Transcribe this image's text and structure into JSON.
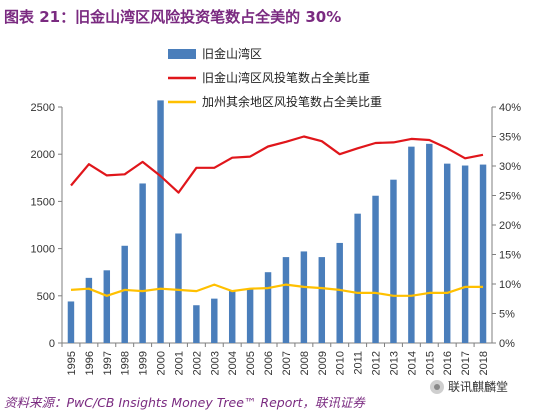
{
  "title": "图表 21：旧金山湾区风险投资笔数占全美的 30%",
  "source": "资料来源：PwC/CB Insights Money Tree™ Report，联讯证券",
  "watermark": "联讯麒麟堂",
  "colors": {
    "bar": "#4a7ebb",
    "sf_line": "#e0161b",
    "ca_line": "#ffc000",
    "title": "#7a2a80"
  },
  "chart_data": {
    "type": "bar",
    "title": "",
    "categories": [
      "1995",
      "1996",
      "1997",
      "1998",
      "1999",
      "2000",
      "2001",
      "2002",
      "2003",
      "2004",
      "2005",
      "2006",
      "2007",
      "2008",
      "2009",
      "2010",
      "2011",
      "2012",
      "2013",
      "2014",
      "2015",
      "2016",
      "2017",
      "2018"
    ],
    "series": [
      {
        "name": "旧金山湾区",
        "type": "bar",
        "axis": "left",
        "values": [
          440,
          690,
          770,
          1030,
          1690,
          2570,
          1160,
          400,
          470,
          560,
          570,
          750,
          910,
          970,
          910,
          1060,
          1370,
          1560,
          1730,
          2080,
          2110,
          1900,
          1880,
          1890
        ]
      },
      {
        "name": "旧金山湾区风投笔数占全美比重",
        "type": "line",
        "axis": "right",
        "values": [
          26.7,
          30.3,
          28.4,
          28.6,
          30.7,
          28.3,
          25.5,
          29.7,
          29.7,
          31.4,
          31.6,
          33.3,
          34.1,
          35.0,
          34.2,
          32.0,
          33.0,
          33.9,
          34.0,
          34.6,
          34.4,
          33.0,
          31.3,
          31.9
        ]
      },
      {
        "name": "加州其余地区风投笔数占全美比重",
        "type": "line",
        "axis": "right",
        "values": [
          9.0,
          9.2,
          8.0,
          9.0,
          8.8,
          9.2,
          9.0,
          8.8,
          9.9,
          8.8,
          9.2,
          9.3,
          9.9,
          9.5,
          9.3,
          9.0,
          8.5,
          8.5,
          8.0,
          8.0,
          8.5,
          8.5,
          9.5,
          9.5
        ]
      }
    ],
    "y_left": {
      "ylim": [
        0,
        2500
      ],
      "ticks": [
        "0",
        "500",
        "1000",
        "1500",
        "2000",
        "2500"
      ]
    },
    "y_right": {
      "ylim": [
        0,
        40
      ],
      "ticks": [
        "0%",
        "5%",
        "10%",
        "15%",
        "20%",
        "25%",
        "30%",
        "35%",
        "40%"
      ]
    },
    "legend_position": "top-center",
    "grid": false
  }
}
